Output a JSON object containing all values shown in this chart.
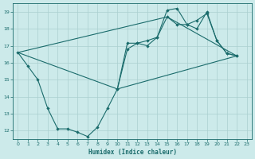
{
  "xlabel": "Humidex (Indice chaleur)",
  "background_color": "#cceaea",
  "grid_color": "#aacfcf",
  "line_color": "#1a6b6b",
  "xlim": [
    -0.5,
    23.5
  ],
  "ylim": [
    11.5,
    19.5
  ],
  "xticks": [
    0,
    1,
    2,
    3,
    4,
    5,
    6,
    7,
    8,
    9,
    10,
    11,
    12,
    13,
    14,
    15,
    16,
    17,
    18,
    19,
    20,
    21,
    22,
    23
  ],
  "yticks": [
    12,
    13,
    14,
    15,
    16,
    17,
    18,
    19
  ],
  "line_jagged": {
    "x": [
      0,
      1,
      2,
      3,
      4,
      5,
      6,
      7,
      8,
      9,
      10,
      11,
      12,
      13,
      14,
      15,
      16,
      17,
      18,
      19,
      20,
      21,
      22
    ],
    "y": [
      16.6,
      15.8,
      15.0,
      13.3,
      12.1,
      12.1,
      11.9,
      11.65,
      12.2,
      13.3,
      14.45,
      17.15,
      17.15,
      17.0,
      17.5,
      19.1,
      19.2,
      18.25,
      18.0,
      19.0,
      17.3,
      16.55,
      16.4
    ]
  },
  "line_straight_lower": {
    "x": [
      0,
      10,
      22
    ],
    "y": [
      16.6,
      14.45,
      16.4
    ]
  },
  "line_upper_envelope": {
    "x": [
      0,
      15,
      22
    ],
    "y": [
      16.6,
      18.7,
      16.4
    ]
  },
  "line_smooth_upper": {
    "x": [
      10,
      11,
      12,
      13,
      14,
      15,
      16,
      17,
      18,
      19,
      20,
      21,
      22
    ],
    "y": [
      14.45,
      16.8,
      17.15,
      17.3,
      17.5,
      18.7,
      18.25,
      18.25,
      18.5,
      18.9,
      17.3,
      16.55,
      16.4
    ]
  }
}
